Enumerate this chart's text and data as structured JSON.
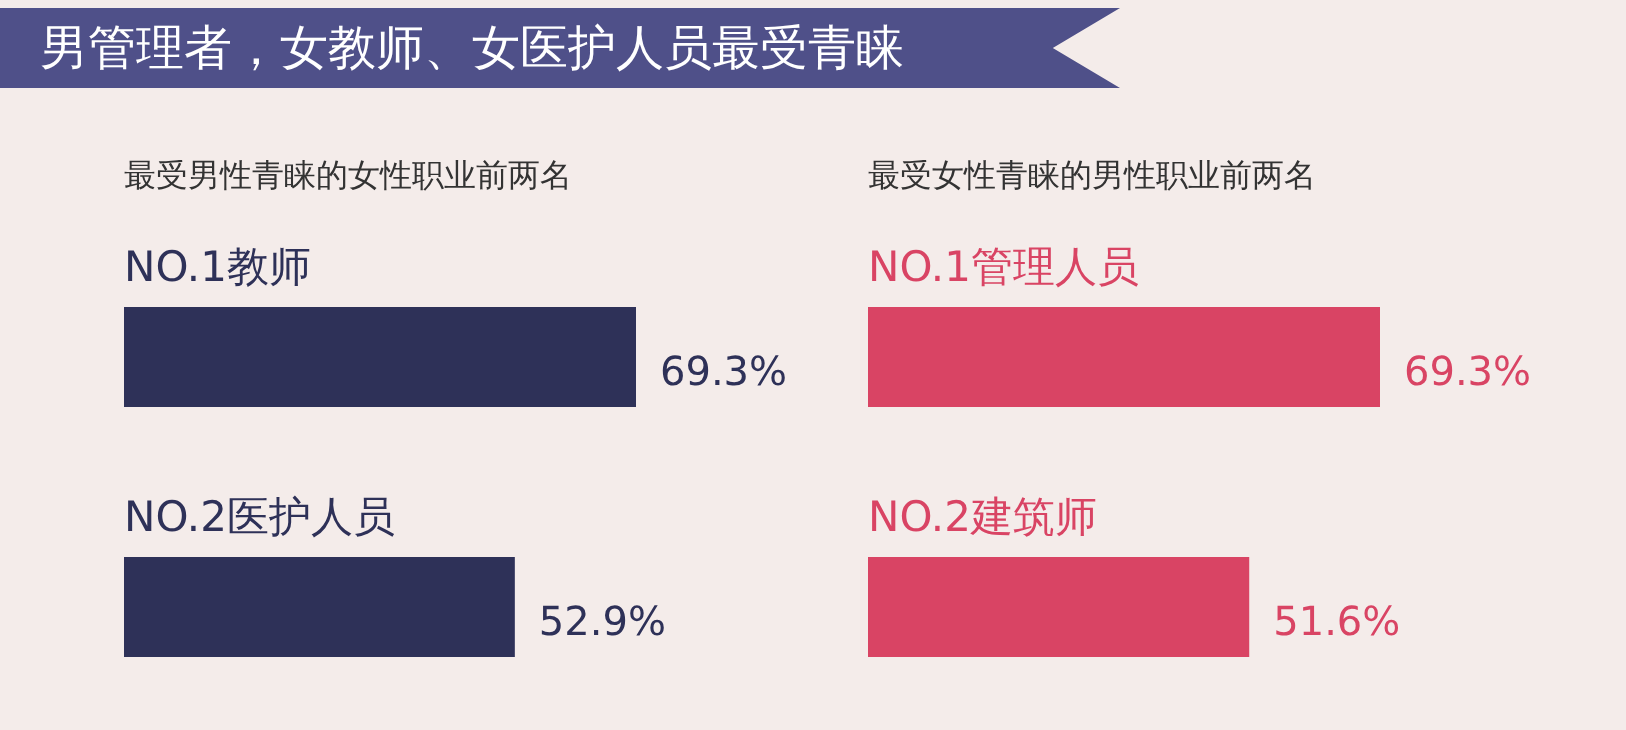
{
  "chart_data": [
    {
      "type": "bar",
      "orientation": "horizontal",
      "title": "最受男性青睐的女性职业前两名",
      "annotations": [
        "男管理者，女教师、女医护人员最受青睐"
      ],
      "categories": [
        "NO.1教师",
        "NO.2医护人员"
      ],
      "values": [
        69.3,
        52.9
      ],
      "value_labels": [
        "69.3%",
        "52.9%"
      ],
      "color": "#2e3158"
    },
    {
      "type": "bar",
      "orientation": "horizontal",
      "title": "最受女性青睐的男性职业前两名",
      "categories": [
        "NO.1管理人员",
        "NO.2建筑师"
      ],
      "values": [
        69.3,
        51.6
      ],
      "value_labels": [
        "69.3%",
        "51.6%"
      ],
      "color": "#d94464"
    }
  ]
}
